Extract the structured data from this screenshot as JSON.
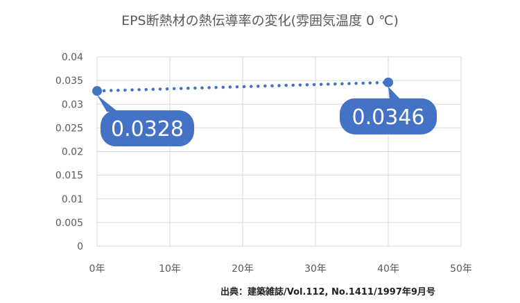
{
  "chart_data": {
    "type": "line",
    "title": "EPS断熱材の熱伝導率の変化(雰囲気温度 0 ℃)",
    "xlabel": "",
    "ylabel": "",
    "x_tick_labels": [
      "0年",
      "10年",
      "20年",
      "30年",
      "40年",
      "50年"
    ],
    "y_tick_labels": [
      "0",
      "0.005",
      "0.01",
      "0.015",
      "0.02",
      "0.025",
      "0.03",
      "0.035",
      "0.04"
    ],
    "xlim": [
      0,
      50
    ],
    "ylim": [
      0,
      0.04
    ],
    "grid": true,
    "series": [
      {
        "x": [
          0,
          40
        ],
        "values": [
          0.0328,
          0.0346
        ],
        "data_labels": [
          "0.0328",
          "0.0346"
        ],
        "line_style": "dotted"
      }
    ],
    "annotations": [
      "出典：建築雑誌/Vol.112, No.1411/1997年9月号"
    ]
  },
  "colors": {
    "series": "#4472c4",
    "grid": "#d9d9d9",
    "text": "#595959"
  }
}
